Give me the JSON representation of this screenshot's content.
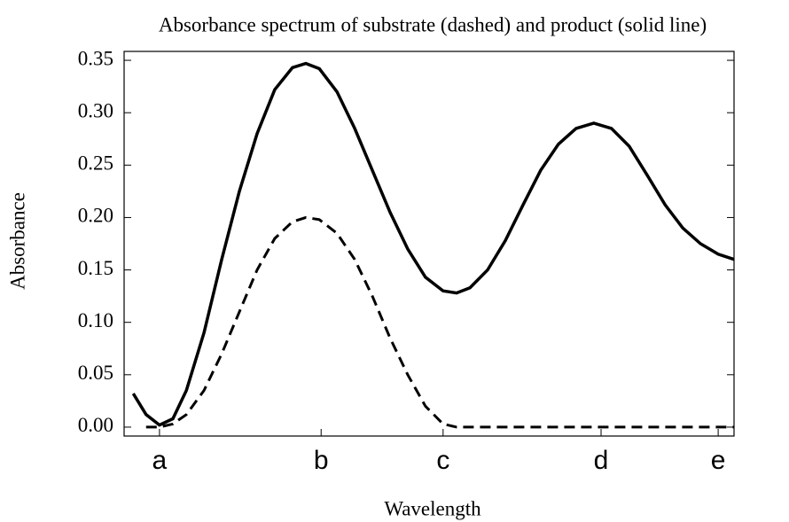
{
  "chart_data": {
    "type": "line",
    "title": "Absorbance spectrum of substrate (dashed) and product (solid line)",
    "x_label": "Wavelength",
    "y_label": "Absorbance",
    "x": [
      1.5,
      3.6,
      5.8,
      8.0,
      10.2,
      13.1,
      16.0,
      18.9,
      21.8,
      24.7,
      27.6,
      29.8,
      32.0,
      34.9,
      37.8,
      40.7,
      43.6,
      46.5,
      49.4,
      52.3,
      54.5,
      56.7,
      59.6,
      62.5,
      65.4,
      68.3,
      71.2,
      74.1,
      77.0,
      79.9,
      82.8,
      85.8,
      88.7,
      91.6,
      94.5,
      97.4,
      100
    ],
    "series": [
      {
        "name": "product",
        "color": "#000000",
        "dash": "solid",
        "values": [
          0.032,
          0.012,
          0.002,
          0.008,
          0.035,
          0.09,
          0.16,
          0.225,
          0.28,
          0.322,
          0.343,
          0.347,
          0.342,
          0.32,
          0.285,
          0.245,
          0.205,
          0.17,
          0.143,
          0.13,
          0.128,
          0.133,
          0.15,
          0.178,
          0.212,
          0.245,
          0.27,
          0.285,
          0.29,
          0.285,
          0.268,
          0.24,
          0.212,
          0.19,
          0.175,
          0.165,
          0.16
        ]
      },
      {
        "name": "substrate",
        "color": "#000000",
        "dash": "dashed",
        "values": [
          null,
          0,
          0,
          0.003,
          0.012,
          0.035,
          0.07,
          0.11,
          0.15,
          0.18,
          0.196,
          0.2,
          0.198,
          0.185,
          0.16,
          0.125,
          0.085,
          0.05,
          0.02,
          0.003,
          0,
          0,
          0,
          0,
          0,
          0,
          0,
          0,
          0,
          0,
          0,
          0,
          0,
          0,
          0,
          0,
          0
        ]
      }
    ],
    "xlim": [
      0,
      100
    ],
    "xticks": [
      {
        "value": 5.8,
        "label": "a"
      },
      {
        "value": 32.3,
        "label": "b"
      },
      {
        "value": 52.3,
        "label": "c"
      },
      {
        "value": 78.2,
        "label": "d"
      },
      {
        "value": 97.4,
        "label": "e"
      }
    ],
    "ylim": [
      -0.0085,
      0.3585
    ],
    "yticks": [
      {
        "value": 0,
        "label": "0.00"
      },
      {
        "value": 0.05,
        "label": "0.05"
      },
      {
        "value": 0.1,
        "label": "0.10"
      },
      {
        "value": 0.15,
        "label": "0.15"
      },
      {
        "value": 0.2,
        "label": "0.20"
      },
      {
        "value": 0.25,
        "label": "0.25"
      },
      {
        "value": 0.3,
        "label": "0.30"
      },
      {
        "value": 0.35,
        "label": "0.35"
      }
    ],
    "grid": false
  }
}
